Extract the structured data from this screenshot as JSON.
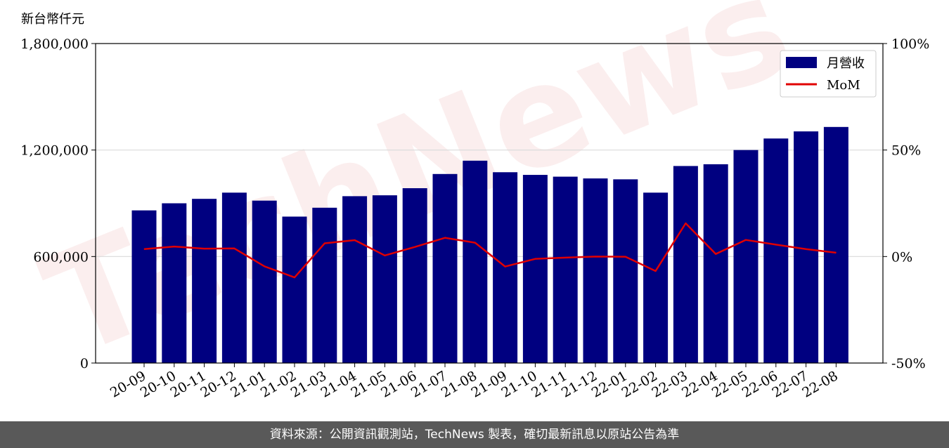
{
  "chart_data": {
    "type": "bar",
    "y_unit_label": "新台幣仟元",
    "categories": [
      "20-09",
      "20-10",
      "20-11",
      "20-12",
      "21-01",
      "21-02",
      "21-03",
      "21-04",
      "21-05",
      "21-06",
      "21-07",
      "21-08",
      "21-09",
      "21-10",
      "21-11",
      "21-12",
      "22-01",
      "22-02",
      "22-03",
      "22-04",
      "22-05",
      "22-06",
      "22-07",
      "22-08"
    ],
    "series": [
      {
        "name": "月營收",
        "type": "bar",
        "axis": "left",
        "color": "#000080",
        "values": [
          860000,
          900000,
          925000,
          960000,
          915000,
          825000,
          875000,
          940000,
          945000,
          985000,
          1065000,
          1140000,
          1075000,
          1060000,
          1050000,
          1040000,
          1035000,
          960000,
          1110000,
          1120000,
          1200000,
          1265000,
          1305000,
          1330000
        ]
      },
      {
        "name": "MoM",
        "type": "line",
        "axis": "right",
        "color": "#e00000",
        "values": [
          3.5,
          4.7,
          3.7,
          3.8,
          -4.6,
          -9.8,
          6.2,
          7.7,
          0.5,
          4.5,
          8.8,
          6.5,
          -4.7,
          -1.1,
          -0.5,
          0,
          -0.1,
          -6.8,
          15.6,
          1.2,
          7.8,
          5.6,
          3.5,
          1.8
        ]
      }
    ],
    "y_left": {
      "min": 0,
      "max": 1800000,
      "ticks": [
        "0",
        "600,000",
        "1,200,000",
        "1,800,000"
      ],
      "tick_values": [
        0,
        600000,
        1200000,
        1800000
      ]
    },
    "y_right": {
      "min": -50,
      "max": 100,
      "ticks": [
        "-50%",
        "0%",
        "50%",
        "100%"
      ],
      "tick_values": [
        -50,
        0,
        50,
        100
      ]
    },
    "grid": "horizontal",
    "legend_position": "top-right"
  },
  "watermark": "TechNews",
  "footer": "資料來源：公開資訊觀測站，TechNews 製表，確切最新訊息以原站公告為準"
}
